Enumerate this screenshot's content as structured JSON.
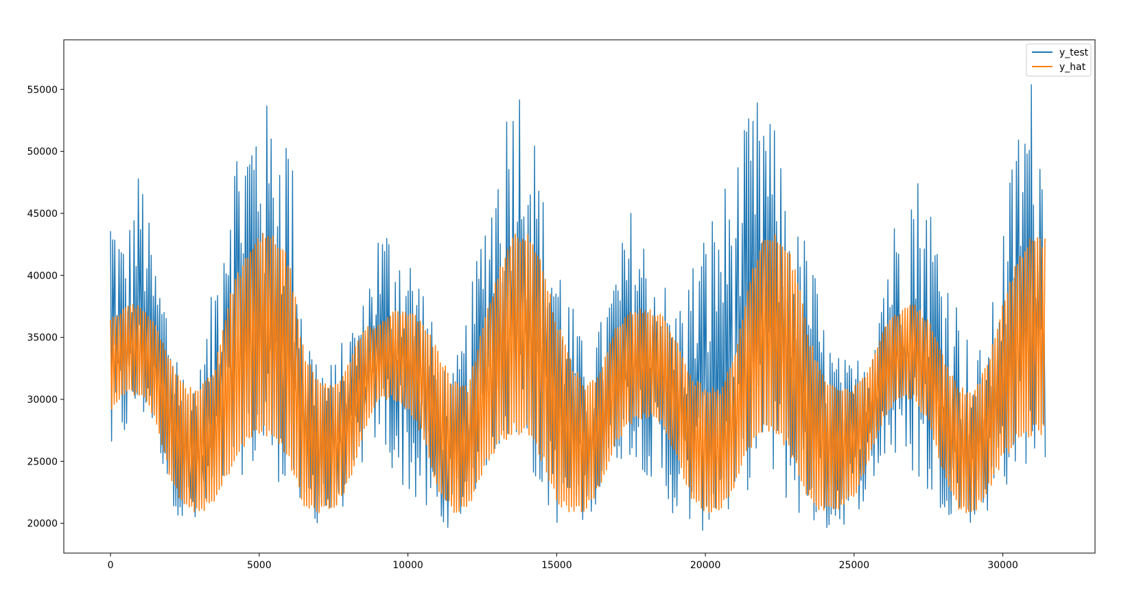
{
  "chart_data": {
    "type": "line",
    "title": "",
    "xlabel": "",
    "ylabel": "",
    "xlim": [
      -1570,
      33100
    ],
    "ylim": [
      17600,
      59000
    ],
    "xticks": [
      0,
      5000,
      10000,
      15000,
      20000,
      25000,
      30000
    ],
    "xtick_labels": [
      "0",
      "5000",
      "10000",
      "15000",
      "20000",
      "25000",
      "30000"
    ],
    "yticks": [
      20000,
      25000,
      30000,
      35000,
      40000,
      45000,
      50000,
      55000
    ],
    "ytick_labels": [
      "20000",
      "25000",
      "30000",
      "35000",
      "40000",
      "45000",
      "50000",
      "55000"
    ],
    "grid": false,
    "legend": {
      "position": "upper right",
      "entries": [
        "y_test",
        "y_hat"
      ]
    },
    "x_range": [
      0,
      31440
    ],
    "series": [
      {
        "name": "y_test",
        "color": "#1f77b4",
        "envelope_x": [
          0,
          500,
          1000,
          1500,
          2000,
          2500,
          3000,
          3500,
          4000,
          4500,
          5000,
          5500,
          6000,
          6500,
          7000,
          7500,
          8000,
          8500,
          9000,
          9500,
          10000,
          10500,
          11000,
          11500,
          12000,
          12500,
          13000,
          13500,
          14000,
          14500,
          15000,
          15500,
          16000,
          16500,
          17000,
          17500,
          18000,
          18500,
          19000,
          19500,
          20000,
          20500,
          21000,
          21500,
          22000,
          22500,
          23000,
          23500,
          24000,
          24500,
          25000,
          25500,
          26000,
          26500,
          27000,
          27500,
          28000,
          28500,
          29000,
          29500,
          30000,
          30500,
          31000,
          31440
        ],
        "envelope_max": [
          46800,
          42500,
          49300,
          41000,
          37500,
          32000,
          32500,
          40000,
          51000,
          52000,
          55100,
          53000,
          53100,
          37000,
          33500,
          33000,
          36000,
          38000,
          44000,
          44500,
          42500,
          40000,
          34000,
          32000,
          37000,
          44500,
          50000,
          56400,
          56300,
          47000,
          43000,
          38000,
          33500,
          36500,
          41000,
          45500,
          43000,
          40500,
          37500,
          41000,
          44000,
          47000,
          49000,
          53500,
          55200,
          50000,
          44000,
          43000,
          36000,
          33500,
          33000,
          35500,
          41500,
          46000,
          49000,
          47000,
          42000,
          38000,
          33500,
          35000,
          44000,
          52500,
          56600,
          49300
        ],
        "envelope_min": [
          24600,
          27000,
          28500,
          27500,
          22000,
          19500,
          19500,
          21000,
          23500,
          24000,
          24500,
          23500,
          23000,
          20000,
          20000,
          20200,
          22000,
          25000,
          27000,
          24000,
          22500,
          21000,
          19600,
          19700,
          21000,
          24000,
          26000,
          27000,
          25500,
          22000,
          20000,
          19800,
          20000,
          22500,
          25000,
          25500,
          24000,
          22000,
          20500,
          19800,
          19300,
          20000,
          21000,
          23000,
          24500,
          22500,
          21000,
          20000,
          19400,
          19600,
          20500,
          22500,
          25000,
          25000,
          24000,
          22000,
          21000,
          20200,
          20000,
          21000,
          22500,
          24500,
          25000,
          24800
        ]
      },
      {
        "name": "y_hat",
        "color": "#ff7f0e",
        "envelope_x": [
          0,
          500,
          1000,
          1500,
          2000,
          2500,
          3000,
          3500,
          4000,
          4500,
          5000,
          5500,
          6000,
          6500,
          7000,
          7500,
          8000,
          8500,
          9000,
          9500,
          10000,
          10500,
          11000,
          11500,
          12000,
          12500,
          13000,
          13500,
          14000,
          14500,
          15000,
          15500,
          16000,
          16500,
          17000,
          17500,
          18000,
          18500,
          19000,
          19500,
          20000,
          20500,
          21000,
          21500,
          22000,
          22500,
          23000,
          23500,
          24000,
          24500,
          25000,
          25500,
          26000,
          26500,
          27000,
          27500,
          28000,
          28500,
          29000,
          29500,
          30000,
          30500,
          31000,
          31440
        ],
        "envelope_max": [
          36500,
          37500,
          37800,
          36300,
          33500,
          31000,
          31000,
          32500,
          38500,
          41500,
          43600,
          43500,
          41500,
          34000,
          31500,
          31000,
          33000,
          36000,
          36000,
          37300,
          37200,
          36500,
          34000,
          31500,
          31000,
          36000,
          40000,
          43600,
          43600,
          41500,
          36500,
          33000,
          31000,
          32500,
          36000,
          37200,
          37500,
          37000,
          35000,
          32000,
          31000,
          31000,
          34000,
          40000,
          43600,
          43500,
          41000,
          35000,
          32000,
          31000,
          31000,
          32500,
          36000,
          37200,
          37800,
          36500,
          33500,
          31000,
          30800,
          33000,
          38000,
          41500,
          43600,
          43000
        ],
        "envelope_min": [
          29000,
          30500,
          30200,
          28500,
          23500,
          21000,
          20800,
          21500,
          24000,
          26000,
          27200,
          26500,
          25000,
          21000,
          20800,
          21000,
          23000,
          27000,
          30000,
          30000,
          29000,
          27000,
          22500,
          20800,
          21000,
          24000,
          26000,
          27200,
          27000,
          25000,
          21500,
          20800,
          21000,
          23000,
          26500,
          28000,
          28500,
          28000,
          25500,
          22000,
          20800,
          21000,
          23000,
          26000,
          27200,
          27000,
          24500,
          21500,
          20800,
          21000,
          22000,
          25000,
          28500,
          30000,
          30000,
          28000,
          24000,
          21000,
          20700,
          22500,
          25000,
          26500,
          27000,
          27200
        ]
      }
    ]
  }
}
